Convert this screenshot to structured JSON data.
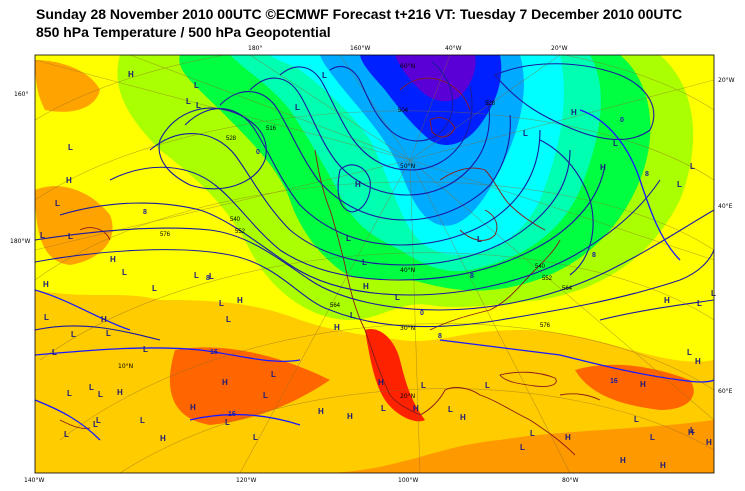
{
  "title_line1": "Sunday 28 November 2010 00UTC ©ECMWF Forecast t+216 VT: Tuesday 7 December 2010 00UTC",
  "title_line2": "850 hPa Temperature / 500 hPa Geopotential",
  "edge_labels": {
    "top": [
      "180°",
      "160°W",
      "40°W",
      "20°W"
    ],
    "bottom": [
      "140°W",
      "120°W",
      "100°W",
      "80°W"
    ],
    "left": [
      "160°",
      "180°W"
    ],
    "right": [
      "20°W",
      "40°E",
      "60°E"
    ]
  },
  "latitude_labels": [
    "60°N",
    "50°N",
    "40°N",
    "30°N",
    "20°N",
    "10°N"
  ],
  "temperature_labels": [
    "0",
    "8",
    "16",
    "8",
    "8",
    "0",
    "8",
    "16",
    "16",
    "0",
    "8",
    "8"
  ],
  "geopotential_labels": [
    "540",
    "552",
    "564",
    "576",
    "528",
    "516",
    "504",
    "540",
    "552",
    "564",
    "576",
    "528"
  ],
  "pressure_centers": {
    "high": "H",
    "low": "L"
  },
  "colors": {
    "cold_deep": "#5a00d6",
    "cold": "#0020ff",
    "cool_blue": "#00aaff",
    "cyan": "#00ffff",
    "teal": "#00ffb0",
    "green": "#00ff40",
    "lime": "#aaff00",
    "yellow": "#ffff00",
    "light_orange": "#ffcc00",
    "orange": "#ff9900",
    "dark_orange": "#ff6600",
    "red": "#ff2200",
    "contour": "#1a1aa0",
    "coast": "#8b1a1a"
  }
}
